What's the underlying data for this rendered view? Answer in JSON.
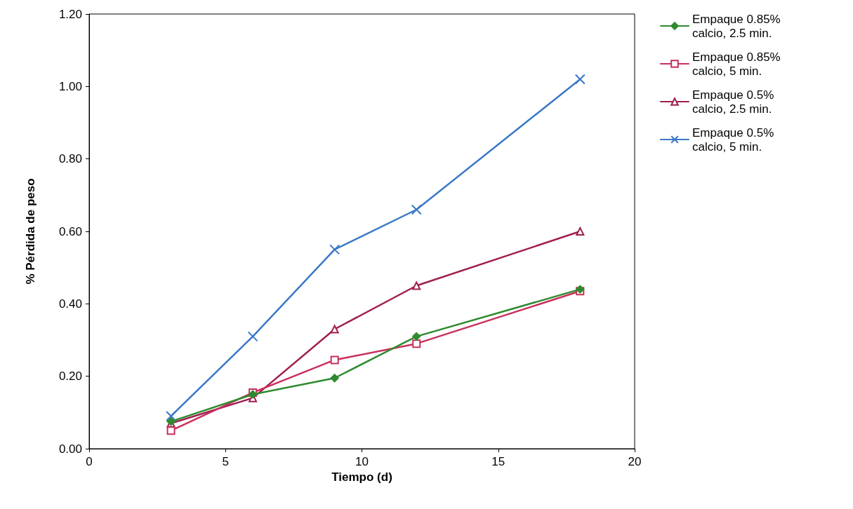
{
  "chart_data": {
    "type": "line",
    "xlabel": "Tiempo (d)",
    "ylabel": "% Pérdida de peso",
    "xlim": [
      0,
      20
    ],
    "xticks": [
      0,
      5,
      10,
      15,
      20
    ],
    "ylim": [
      0,
      1.2
    ],
    "yticks": [
      {
        "value": 0,
        "label": "0.00"
      },
      {
        "value": 0.2,
        "label": "0.20"
      },
      {
        "value": 0.4,
        "label": "0.40"
      },
      {
        "value": 0.6,
        "label": "0.60"
      },
      {
        "value": 0.8,
        "label": "0.80"
      },
      {
        "value": 1.0,
        "label": "1.00"
      },
      {
        "value": 1.2,
        "label": "1.20"
      }
    ],
    "x": [
      3,
      6,
      9,
      12,
      18
    ],
    "series": [
      {
        "name": "Empaque 0.85% calcio, 2.5 min.",
        "color": "#2f8a2f",
        "marker": "diamond",
        "values": [
          0.075,
          0.15,
          0.195,
          0.31,
          0.44
        ]
      },
      {
        "name": "Empaque 0.85% calcio, 5 min.",
        "color": "#c8305a",
        "marker": "square",
        "values": [
          0.05,
          0.155,
          0.245,
          0.29,
          0.435
        ]
      },
      {
        "name": "Empaque 0.5% calcio, 2.5 min.",
        "color": "#a01e50",
        "marker": "triangle",
        "values": [
          0.07,
          0.14,
          0.33,
          0.45,
          0.6
        ]
      },
      {
        "name": "Empaque 0.5% calcio, 5 min.",
        "color": "#3a78c8",
        "marker": "cross",
        "values": [
          0.09,
          0.31,
          0.55,
          0.66,
          1.02
        ]
      }
    ],
    "legend": "right",
    "grid": false,
    "line_style": "solid"
  }
}
